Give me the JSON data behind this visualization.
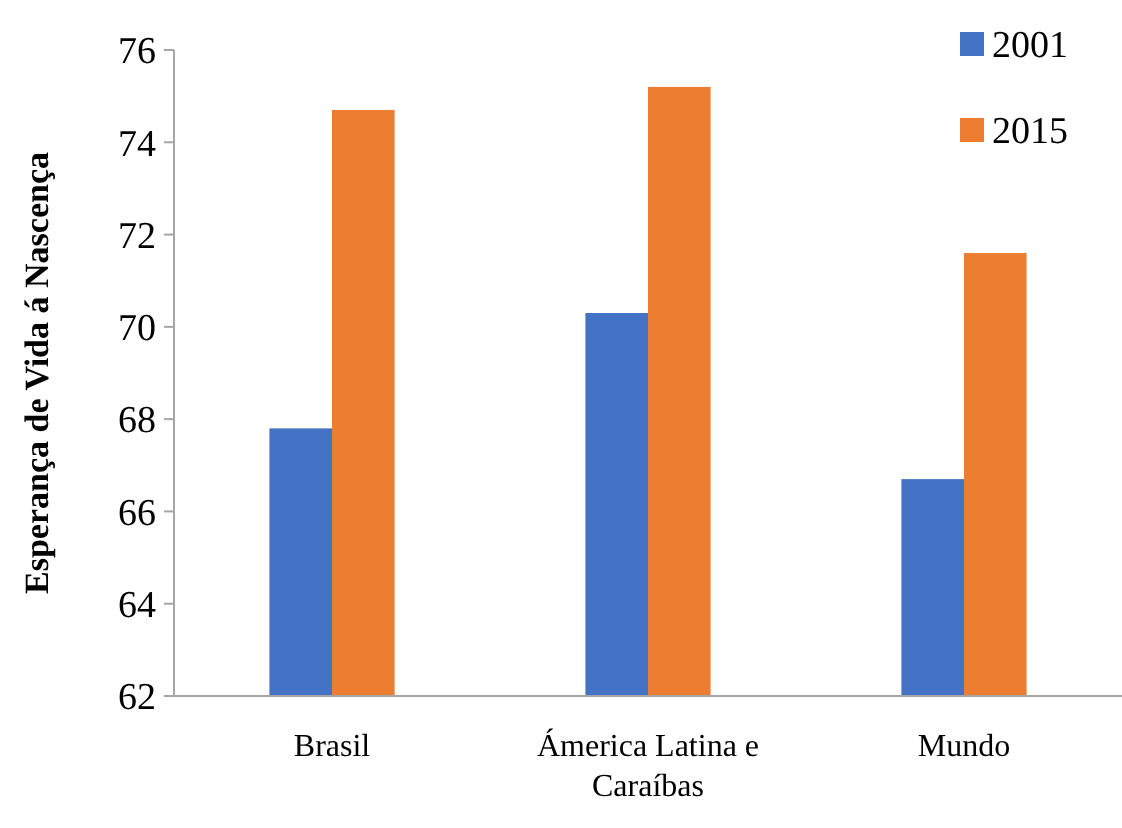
{
  "chart_data": {
    "type": "bar",
    "ylabel": "Esperança de Vida á Nascença",
    "categories": [
      "Brasil",
      "Ámerica Latina e Caraíbas",
      "Mundo"
    ],
    "series": [
      {
        "name": "2001",
        "color": "#4472c4",
        "values": [
          67.8,
          70.3,
          66.7
        ]
      },
      {
        "name": "2015",
        "color": "#ed7d31",
        "values": [
          74.7,
          75.2,
          71.6
        ]
      }
    ],
    "ylim": [
      62,
      76
    ],
    "yticks": [
      62,
      64,
      66,
      68,
      70,
      72,
      74,
      76
    ],
    "legend": "top right",
    "grid": false
  }
}
